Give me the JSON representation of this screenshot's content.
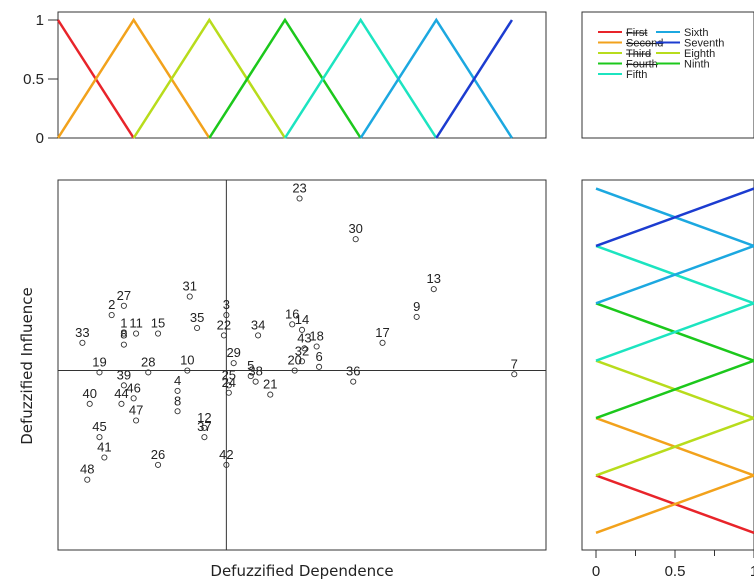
{
  "chart_data": [
    {
      "type": "line",
      "role": "membership-functions-top",
      "ylim": [
        0,
        1
      ],
      "y_ticks": [
        "0",
        "0.5",
        "1"
      ],
      "series": [
        {
          "name": "First",
          "color": "#e8242a",
          "x": [
            0,
            1
          ],
          "y": [
            1,
            0
          ]
        },
        {
          "name": "Second",
          "color": "#f2a21c",
          "x": [
            0,
            1,
            2
          ],
          "y": [
            0,
            1,
            0
          ]
        },
        {
          "name": "Third",
          "color": "#b8dc1c",
          "x": [
            1,
            2,
            3
          ],
          "y": [
            0,
            1,
            0
          ]
        },
        {
          "name": "Fourth",
          "color": "#1cc81c",
          "x": [
            2,
            3,
            4
          ],
          "y": [
            0,
            1,
            0
          ]
        },
        {
          "name": "Fifth",
          "color": "#1ce4c0",
          "x": [
            3,
            4,
            5
          ],
          "y": [
            0,
            1,
            0
          ]
        },
        {
          "name": "Sixth",
          "color": "#1ca8e0",
          "x": [
            4,
            5,
            6
          ],
          "y": [
            0,
            1,
            0
          ]
        },
        {
          "name": "Seventh",
          "color": "#1c3cd0",
          "x": [
            5,
            6
          ],
          "y": [
            0,
            1
          ]
        }
      ],
      "xlim": [
        0,
        6.45
      ]
    },
    {
      "type": "scatter",
      "role": "influence-dependence",
      "xlabel": "Defuzzified Dependence",
      "ylabel": "Defuzzified Influence",
      "xlim": [
        0,
        10
      ],
      "ylim": [
        0,
        10
      ],
      "reference_lines": {
        "x": 3.45,
        "y": 4.85
      },
      "points": [
        {
          "label": "23",
          "x": 4.95,
          "y": 9.5
        },
        {
          "label": "30",
          "x": 6.1,
          "y": 8.4
        },
        {
          "label": "13",
          "x": 7.7,
          "y": 7.05
        },
        {
          "label": "31",
          "x": 2.7,
          "y": 6.85
        },
        {
          "label": "27",
          "x": 1.35,
          "y": 6.6
        },
        {
          "label": "2",
          "x": 1.1,
          "y": 6.35
        },
        {
          "label": "9",
          "x": 7.35,
          "y": 6.3
        },
        {
          "label": "3",
          "x": 3.45,
          "y": 6.35
        },
        {
          "label": "16",
          "x": 4.8,
          "y": 6.1
        },
        {
          "label": "14",
          "x": 5.0,
          "y": 5.95
        },
        {
          "label": "35",
          "x": 2.85,
          "y": 6.0
        },
        {
          "label": "1",
          "x": 1.35,
          "y": 5.85
        },
        {
          "label": "11",
          "x": 1.6,
          "y": 5.85
        },
        {
          "label": "15",
          "x": 2.05,
          "y": 5.85
        },
        {
          "label": "22",
          "x": 3.4,
          "y": 5.8
        },
        {
          "label": "34",
          "x": 4.1,
          "y": 5.8
        },
        {
          "label": "33",
          "x": 0.5,
          "y": 5.6
        },
        {
          "label": "8",
          "x": 1.35,
          "y": 5.55
        },
        {
          "label": "17",
          "x": 6.65,
          "y": 5.6
        },
        {
          "label": "18",
          "x": 5.3,
          "y": 5.5
        },
        {
          "label": "43",
          "x": 5.05,
          "y": 5.45
        },
        {
          "label": "32",
          "x": 5.0,
          "y": 5.1
        },
        {
          "label": "6",
          "x": 5.35,
          "y": 4.95
        },
        {
          "label": "29",
          "x": 3.6,
          "y": 5.05
        },
        {
          "label": "20",
          "x": 4.85,
          "y": 4.85
        },
        {
          "label": "19",
          "x": 0.85,
          "y": 4.8
        },
        {
          "label": "28",
          "x": 1.85,
          "y": 4.8
        },
        {
          "label": "10",
          "x": 2.65,
          "y": 4.85
        },
        {
          "label": "5",
          "x": 3.95,
          "y": 4.7
        },
        {
          "label": "36",
          "x": 6.05,
          "y": 4.55
        },
        {
          "label": "7",
          "x": 9.35,
          "y": 4.75
        },
        {
          "label": "38",
          "x": 4.05,
          "y": 4.55
        },
        {
          "label": "21",
          "x": 4.35,
          "y": 4.2
        },
        {
          "label": "25",
          "x": 3.5,
          "y": 4.45
        },
        {
          "label": "24",
          "x": 3.5,
          "y": 4.25
        },
        {
          "label": "39",
          "x": 1.35,
          "y": 4.45
        },
        {
          "label": "4",
          "x": 2.45,
          "y": 4.3
        },
        {
          "label": "46",
          "x": 1.55,
          "y": 4.1
        },
        {
          "label": "40",
          "x": 0.65,
          "y": 3.95
        },
        {
          "label": "44",
          "x": 1.3,
          "y": 3.95
        },
        {
          "label": "8",
          "x": 2.45,
          "y": 3.75
        },
        {
          "label": "47",
          "x": 1.6,
          "y": 3.5
        },
        {
          "label": "45",
          "x": 0.85,
          "y": 3.05
        },
        {
          "label": "12",
          "x": 3.0,
          "y": 3.3
        },
        {
          "label": "37",
          "x": 3.0,
          "y": 3.05
        },
        {
          "label": "41",
          "x": 0.95,
          "y": 2.5
        },
        {
          "label": "26",
          "x": 2.05,
          "y": 2.3
        },
        {
          "label": "42",
          "x": 3.45,
          "y": 2.3
        },
        {
          "label": "48",
          "x": 0.6,
          "y": 1.9
        }
      ]
    },
    {
      "type": "line",
      "role": "membership-functions-right",
      "x_ticks": [
        "0",
        "0.5",
        "1"
      ],
      "orientation": "vertical"
    }
  ],
  "legend": {
    "entries": [
      {
        "label": "First",
        "color": "#e8242a",
        "struck": true
      },
      {
        "label": "Second",
        "color": "#f2a21c",
        "struck": true
      },
      {
        "label": "Third",
        "color": "#b8dc1c",
        "struck": true
      },
      {
        "label": "Fourth",
        "color": "#1cc81c",
        "struck": true
      },
      {
        "label": "Fifth",
        "color": "#1ce4c0",
        "struck": false
      },
      {
        "label": "Sixth",
        "color": "#1ca8e0",
        "struck": false
      },
      {
        "label": "Seventh",
        "color": "#1c3cd0",
        "struck": false
      },
      {
        "label": "Eighth",
        "color": "#b8dc1c",
        "struck": false
      },
      {
        "label": "Ninth",
        "color": "#1cc81c",
        "struck": false
      }
    ]
  }
}
